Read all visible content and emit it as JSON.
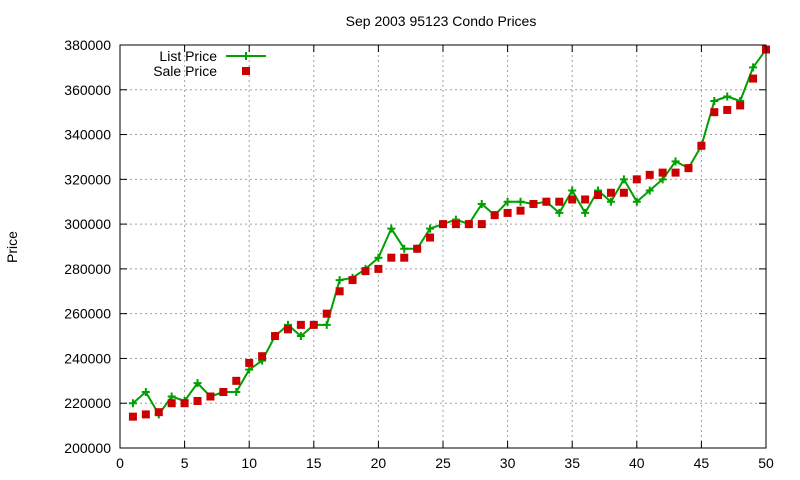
{
  "chart_data": {
    "type": "line",
    "title": "Sep 2003 95123 Condo Prices",
    "xlabel": "",
    "ylabel": "Price",
    "xlim": [
      0,
      50
    ],
    "ylim": [
      200000,
      380000
    ],
    "x_ticks": [
      0,
      5,
      10,
      15,
      20,
      25,
      30,
      35,
      40,
      45,
      50
    ],
    "y_ticks": [
      200000,
      220000,
      240000,
      260000,
      280000,
      300000,
      320000,
      340000,
      360000,
      380000
    ],
    "grid": true,
    "legend_position": "top-left",
    "x": [
      1,
      2,
      3,
      4,
      5,
      6,
      7,
      8,
      9,
      10,
      11,
      12,
      13,
      14,
      15,
      16,
      17,
      18,
      19,
      20,
      21,
      22,
      23,
      24,
      25,
      26,
      27,
      28,
      29,
      30,
      31,
      32,
      33,
      34,
      35,
      36,
      37,
      38,
      39,
      40,
      41,
      42,
      43,
      44,
      45,
      46,
      47,
      48,
      49,
      50
    ],
    "series": [
      {
        "name": "List Price",
        "style": "linespoints",
        "marker": "plus",
        "color": "#00a000",
        "values": [
          220000,
          225000,
          215000,
          223000,
          221000,
          229000,
          223000,
          225000,
          225000,
          235000,
          239000,
          250000,
          255000,
          250000,
          255000,
          255000,
          275000,
          276000,
          280000,
          285000,
          298000,
          289000,
          289000,
          298000,
          300000,
          302000,
          300000,
          309000,
          304000,
          310000,
          310000,
          309000,
          310000,
          305000,
          315000,
          305000,
          315000,
          310000,
          320000,
          310000,
          315000,
          320000,
          328000,
          325000,
          335000,
          355000,
          357000,
          355000,
          370000,
          378000
        ]
      },
      {
        "name": "Sale Price",
        "style": "points",
        "marker": "square",
        "color": "#cc0000",
        "values": [
          214000,
          215000,
          216000,
          220000,
          220000,
          221000,
          223000,
          225000,
          230000,
          238000,
          241000,
          250000,
          253000,
          255000,
          255000,
          260000,
          270000,
          275000,
          279000,
          280000,
          285000,
          285000,
          289000,
          294000,
          300000,
          300000,
          300000,
          300000,
          304000,
          305000,
          306000,
          309000,
          310000,
          310000,
          311000,
          311000,
          313000,
          314000,
          314000,
          320000,
          322000,
          323000,
          323000,
          325000,
          335000,
          350000,
          351000,
          353000,
          365000,
          378000
        ]
      }
    ]
  }
}
